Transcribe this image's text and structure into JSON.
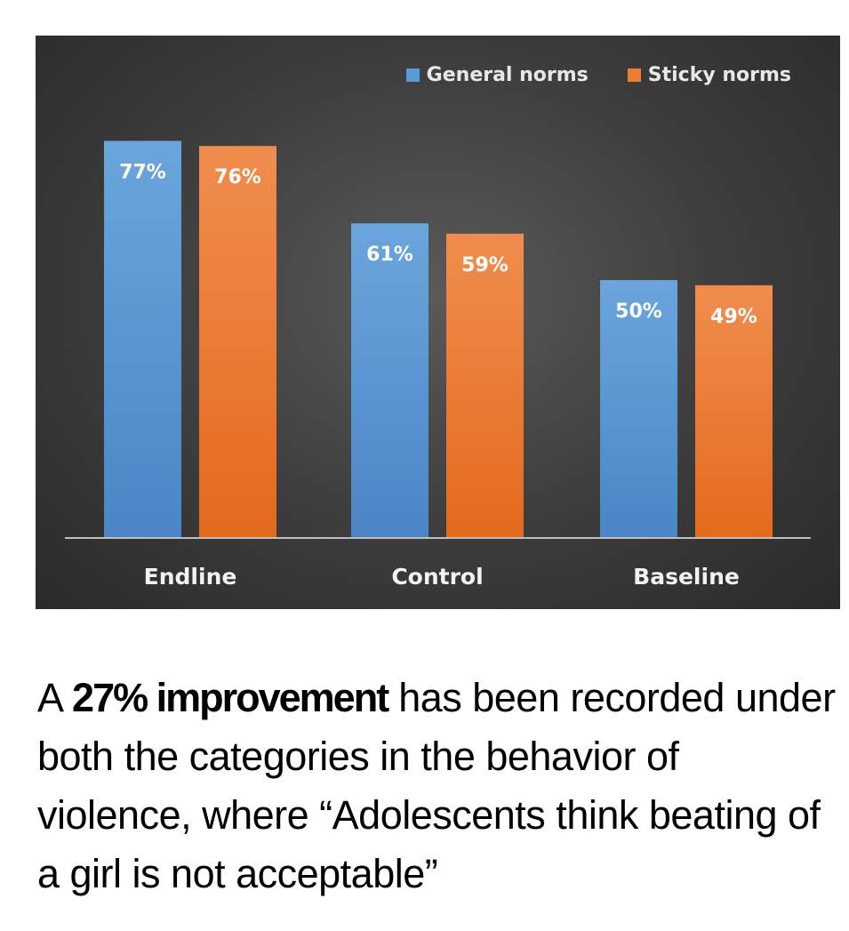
{
  "chart_data": {
    "type": "bar",
    "categories": [
      "Endline",
      "Control",
      "Baseline"
    ],
    "series": [
      {
        "name": "General norms",
        "values": [
          77,
          61,
          50
        ],
        "color": "#5b9bd5"
      },
      {
        "name": "Sticky norms",
        "values": [
          76,
          59,
          49
        ],
        "color": "#ed7d31"
      }
    ],
    "value_suffix": "%",
    "ylim": [
      0,
      80
    ],
    "grid": false,
    "legend_position": "top-right",
    "data_labels": [
      "77%",
      "76%",
      "61%",
      "59%",
      "50%",
      "49%"
    ]
  },
  "caption": {
    "prefix": "A ",
    "highlight": "27% improvement",
    "rest": " has been recorded under both the categories in the behavior of violence, where “Adolescents think beating of a girl is not acceptable”"
  }
}
